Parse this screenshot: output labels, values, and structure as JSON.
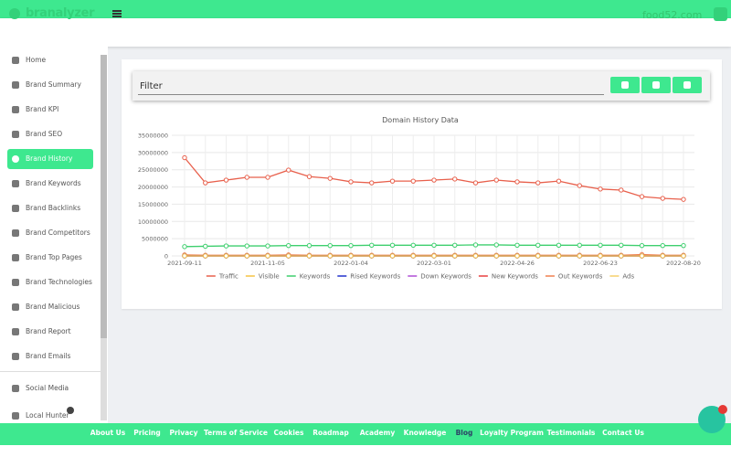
{
  "header": {
    "logo": "branalyzer",
    "site": "food52.com"
  },
  "menu": [
    "Home",
    "Brand Summary",
    "Brand KPI",
    "Brand SEO",
    "Brand History",
    "Brand Keywords",
    "Brand Backlinks",
    "Brand Competitors",
    "Brand Top Pages",
    "Brand Technologies",
    "Brand Malicious",
    "Brand Report",
    "Brand Emails"
  ],
  "menu_extra": [
    "Social Media",
    "Local Hunter"
  ],
  "filter": "Filter",
  "footer": [
    "About Us",
    "Pricing",
    "Privacy",
    "Terms of Service",
    "Cookies",
    "Roadmap",
    "Academy",
    "Knowledge",
    "Blog",
    "Loyalty Program",
    "Testimonials",
    "Contact Us"
  ],
  "chart_data": {
    "type": "line",
    "title": "Domain History Data",
    "categories": [
      "2021-09-11",
      null,
      null,
      null,
      "2021-11-05",
      null,
      null,
      null,
      "2022-01-04",
      null,
      null,
      null,
      "2022-03-01",
      null,
      null,
      null,
      "2022-04-26",
      null,
      null,
      null,
      "2022-06-23",
      null,
      null,
      null,
      "2022-08-20"
    ],
    "ylim": [
      0,
      35000000
    ],
    "yticks": [
      0,
      5000000,
      10000000,
      15000000,
      20000000,
      25000000,
      30000000,
      35000000
    ],
    "grid": true,
    "legend": "bottom",
    "series": [
      {
        "name": "Traffic",
        "color": "#e8604c",
        "values": [
          28500000,
          21200000,
          22000000,
          22800000,
          22800000,
          24900000,
          23000000,
          22500000,
          21500000,
          21200000,
          21700000,
          21700000,
          22000000,
          22300000,
          21200000,
          22000000,
          21500000,
          21200000,
          21700000,
          20400000,
          19400000,
          19100000,
          17200000,
          16700000,
          16400000
        ]
      },
      {
        "name": "Visible",
        "color": "#f5c342",
        "values": [
          0,
          0,
          0,
          0,
          0,
          0,
          0,
          0,
          0,
          0,
          0,
          0,
          0,
          0,
          0,
          0,
          0,
          0,
          0,
          0,
          0,
          0,
          0,
          0,
          0
        ]
      },
      {
        "name": "Keywords",
        "color": "#3ecf6e",
        "values": [
          2700000,
          2800000,
          2900000,
          2900000,
          2900000,
          3000000,
          3000000,
          3000000,
          3000000,
          3100000,
          3100000,
          3100000,
          3100000,
          3100000,
          3200000,
          3200000,
          3100000,
          3100000,
          3100000,
          3100000,
          3100000,
          3100000,
          3000000,
          3000000,
          3000000
        ]
      },
      {
        "name": "Rised Keywords",
        "color": "#2233cc",
        "values": [
          0,
          0,
          0,
          0,
          0,
          0,
          0,
          0,
          0,
          0,
          0,
          0,
          0,
          0,
          0,
          0,
          0,
          0,
          0,
          0,
          0,
          0,
          0,
          0,
          0
        ]
      },
      {
        "name": "Down Keywords",
        "color": "#b04fd6",
        "values": [
          0,
          0,
          0,
          0,
          0,
          0,
          0,
          0,
          0,
          0,
          0,
          0,
          0,
          0,
          0,
          0,
          0,
          0,
          0,
          0,
          0,
          0,
          0,
          0,
          0
        ]
      },
      {
        "name": "New Keywords",
        "color": "#e84040",
        "values": [
          0,
          0,
          0,
          0,
          0,
          0,
          0,
          0,
          0,
          0,
          0,
          0,
          0,
          0,
          0,
          0,
          0,
          0,
          0,
          0,
          0,
          0,
          0,
          0,
          0
        ]
      },
      {
        "name": "Out Keywords",
        "color": "#f08050",
        "values": [
          300000,
          200000,
          200000,
          200000,
          200000,
          300000,
          200000,
          200000,
          200000,
          200000,
          200000,
          200000,
          200000,
          200000,
          200000,
          200000,
          200000,
          200000,
          200000,
          200000,
          200000,
          200000,
          400000,
          200000,
          200000
        ]
      },
      {
        "name": "Ads",
        "color": "#f5d06a",
        "values": [
          0,
          0,
          0,
          0,
          0,
          0,
          0,
          0,
          0,
          0,
          0,
          0,
          0,
          0,
          0,
          0,
          0,
          0,
          0,
          0,
          0,
          0,
          0,
          0,
          0
        ]
      }
    ]
  }
}
